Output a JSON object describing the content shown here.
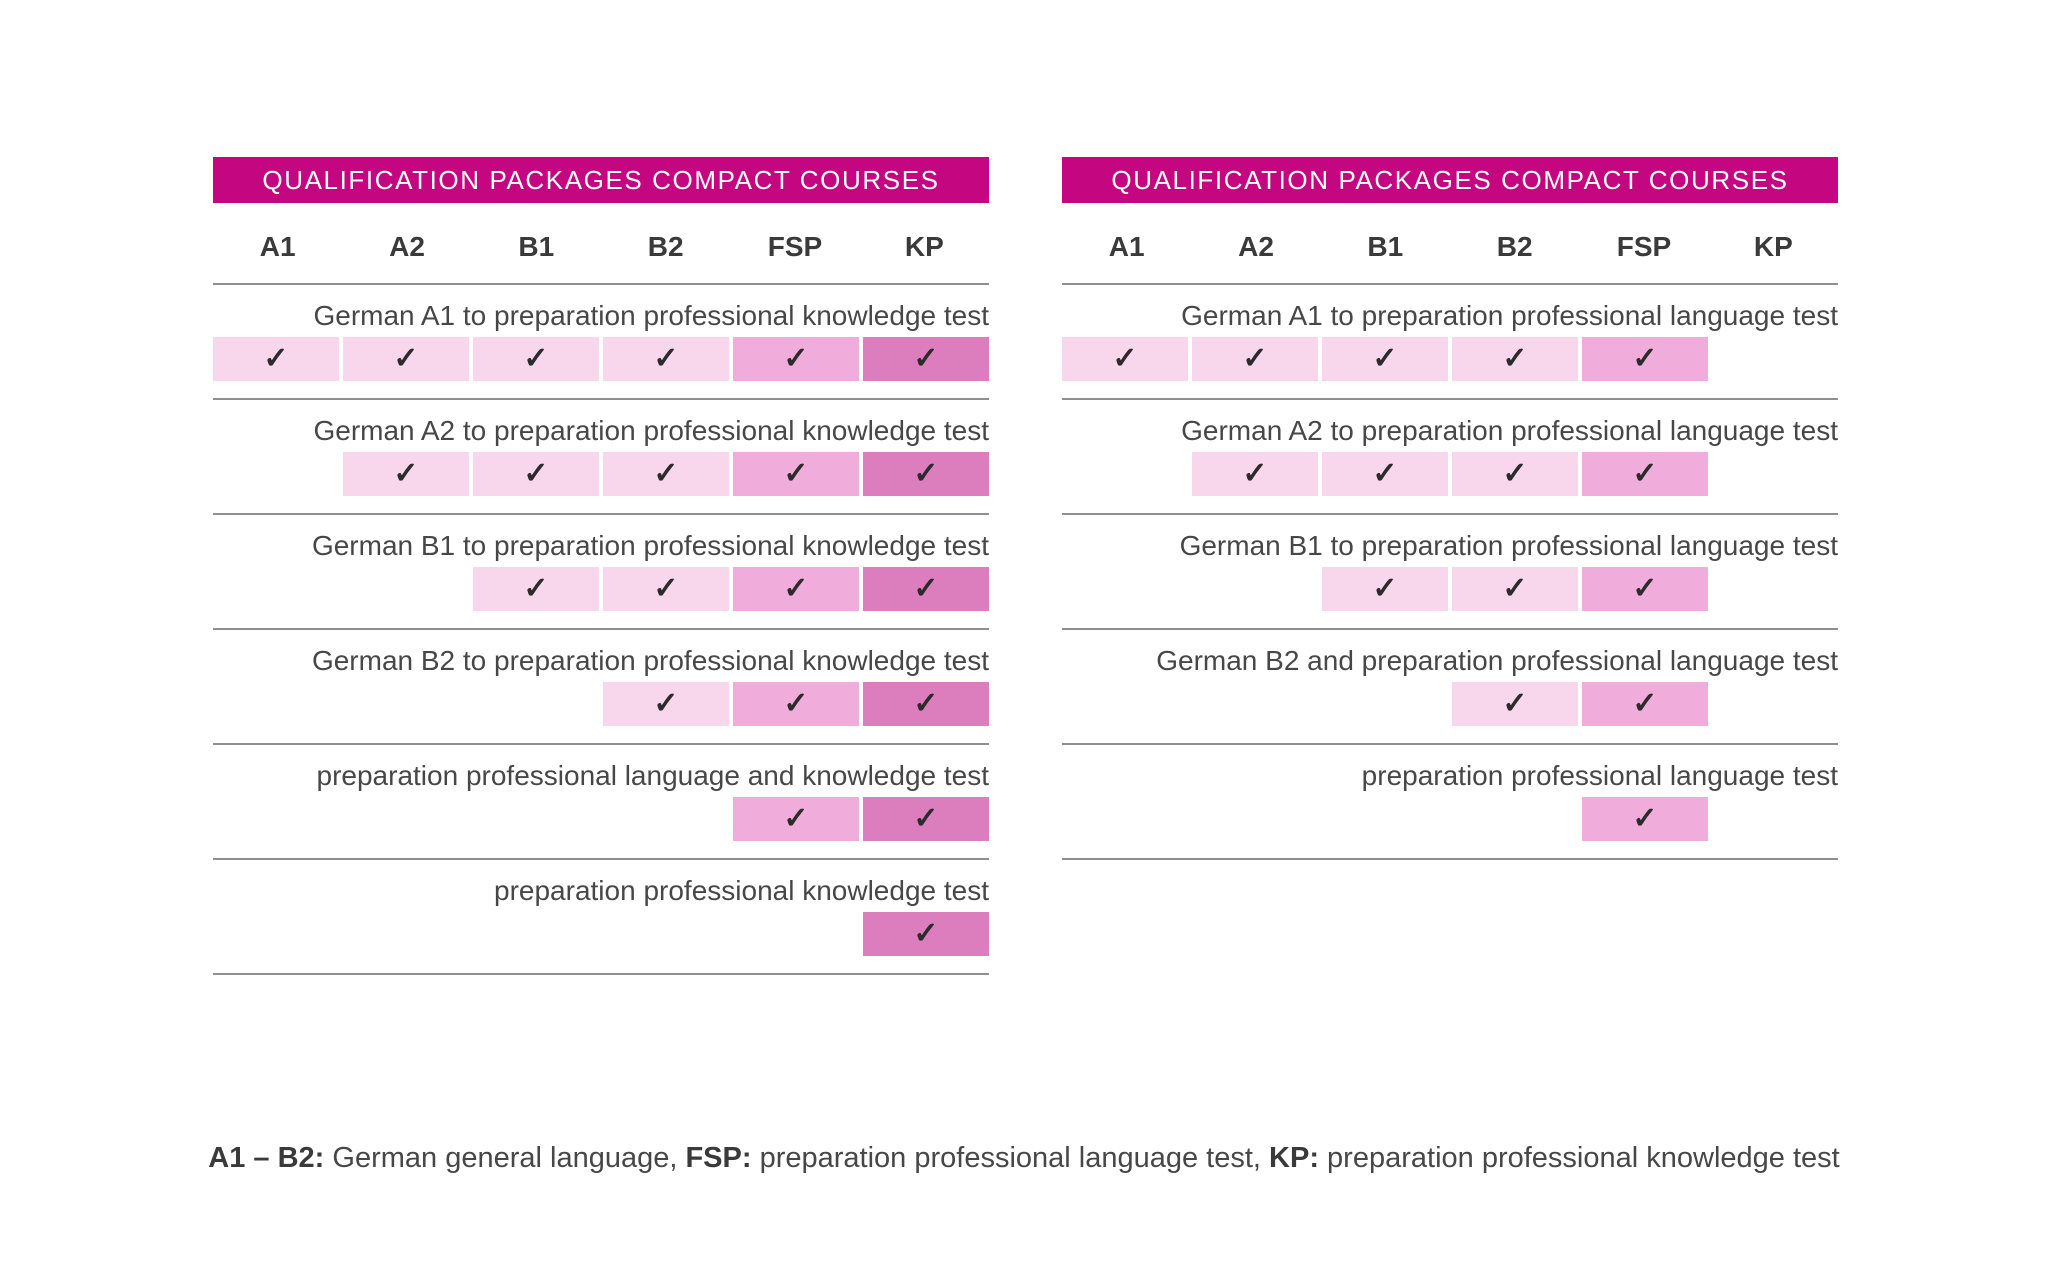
{
  "colors": {
    "header_bg": "#C40781",
    "header_fg": "#FFFFFF",
    "cell_light": "#F8D6EB",
    "cell_medium": "#F0ACDA",
    "cell_dark": "#DC7DBD",
    "line": "#8F8F8F",
    "text": "#474747",
    "text_strong": "#3A3A3A",
    "check": "#2B2B2B"
  },
  "check_glyph": "✓",
  "chart_data": [
    {
      "type": "table",
      "title": "QUALIFICATION PACKAGES COMPACT COURSES",
      "columns": [
        "A1",
        "A2",
        "B1",
        "B2",
        "FSP",
        "KP"
      ],
      "rows": [
        {
          "label": "German A1 to preparation professional knowledge test",
          "checks": [
            1,
            1,
            1,
            1,
            1,
            1
          ]
        },
        {
          "label": "German A2 to preparation professional knowledge test",
          "checks": [
            0,
            1,
            1,
            1,
            1,
            1
          ]
        },
        {
          "label": "German B1 to preparation professional knowledge test",
          "checks": [
            0,
            0,
            1,
            1,
            1,
            1
          ]
        },
        {
          "label": "German B2 to preparation professional knowledge test",
          "checks": [
            0,
            0,
            0,
            1,
            1,
            1
          ]
        },
        {
          "label": "preparation professional language and knowledge test",
          "checks": [
            0,
            0,
            0,
            0,
            1,
            1
          ]
        },
        {
          "label": "preparation professional knowledge test",
          "checks": [
            0,
            0,
            0,
            0,
            0,
            1
          ]
        }
      ]
    },
    {
      "type": "table",
      "title": "QUALIFICATION PACKAGES COMPACT COURSES",
      "columns": [
        "A1",
        "A2",
        "B1",
        "B2",
        "FSP",
        "KP"
      ],
      "rows": [
        {
          "label": "German A1 to preparation professional language test",
          "checks": [
            1,
            1,
            1,
            1,
            1,
            0
          ]
        },
        {
          "label": "German A2 to preparation professional language test",
          "checks": [
            0,
            1,
            1,
            1,
            1,
            0
          ]
        },
        {
          "label": "German B1 to preparation professional language test",
          "checks": [
            0,
            0,
            1,
            1,
            1,
            0
          ]
        },
        {
          "label": "German B2 and preparation professional language test",
          "checks": [
            0,
            0,
            0,
            1,
            1,
            0
          ]
        },
        {
          "label": "preparation professional language test",
          "checks": [
            0,
            0,
            0,
            0,
            1,
            0
          ]
        }
      ]
    }
  ],
  "footer": {
    "segments": [
      {
        "bold": "A1 – B2:",
        "text": " German general language, "
      },
      {
        "bold": "FSP:",
        "text": " preparation professional language test, "
      },
      {
        "bold": "KP:",
        "text": " preparation professional knowledge test"
      }
    ]
  }
}
